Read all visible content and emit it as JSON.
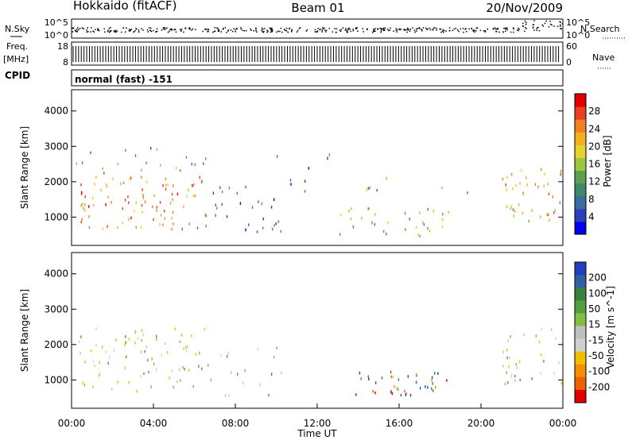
{
  "header": {
    "station": "Hokkaido (fitACF)",
    "beam": "Beam 01",
    "date": "20/Nov/2009"
  },
  "top_panels": {
    "noise_left_label": "N.Sky",
    "noise_right_label": "N.Search",
    "noise_ticks": [
      "10^5",
      "10^0"
    ],
    "freq_label": "Freq.",
    "freq_unit": "[MHz]",
    "freq_ticks": [
      "18",
      "8"
    ],
    "nave_label": "Nave",
    "nave_ticks": [
      "60",
      "0"
    ],
    "cpid_label": "CPID",
    "cpid_value": "normal (fast) -151"
  },
  "chart_data": [
    {
      "type": "heatmap",
      "panel": "power",
      "ylabel": "Slant Range [km]",
      "xlabel": "",
      "ylim": [
        200,
        4600
      ],
      "yticks": [
        1000,
        2000,
        3000,
        4000
      ],
      "xlim_hours": [
        0,
        24
      ],
      "colorbar": {
        "label": "Power [dB]",
        "range": [
          0,
          32
        ],
        "ticks": [
          4,
          8,
          12,
          16,
          20,
          24,
          28
        ],
        "colors": [
          "#0000ee",
          "#2a3fb8",
          "#3d6aa0",
          "#3d8a6a",
          "#5aa050",
          "#9ac840",
          "#e8d030",
          "#f5b020",
          "#f08020",
          "#e84020",
          "#e00000"
        ]
      },
      "regions": [
        {
          "t0": 0.2,
          "t1": 6.6,
          "r0": 700,
          "r1": 2200,
          "level": 0.72,
          "density": 0.85
        },
        {
          "t0": 0.2,
          "t1": 6.6,
          "r0": 2200,
          "r1": 3000,
          "level": 0.35,
          "density": 0.35
        },
        {
          "t0": 6.5,
          "t1": 10.5,
          "r0": 600,
          "r1": 2000,
          "level": 0.22,
          "density": 0.45
        },
        {
          "t0": 10,
          "t1": 13.5,
          "r0": 1500,
          "r1": 2800,
          "level": 0.18,
          "density": 0.15
        },
        {
          "t0": 13,
          "t1": 18.5,
          "r0": 500,
          "r1": 1300,
          "level": 0.5,
          "density": 0.65
        },
        {
          "t0": 14,
          "t1": 16,
          "r0": 1700,
          "r1": 2300,
          "level": 0.45,
          "density": 0.35
        },
        {
          "t0": 18,
          "t1": 20,
          "r0": 1700,
          "r1": 2000,
          "level": 0.5,
          "density": 0.3
        },
        {
          "t0": 21,
          "t1": 24,
          "r0": 900,
          "r1": 2400,
          "level": 0.65,
          "density": 0.8
        }
      ]
    },
    {
      "type": "heatmap",
      "panel": "velocity",
      "ylabel": "Slant Range [km]",
      "xlabel": "Time UT",
      "ylim": [
        200,
        4600
      ],
      "yticks": [
        1000,
        2000,
        3000,
        4000
      ],
      "xlim_hours": [
        0,
        24
      ],
      "xticks": [
        "00:00",
        "04:00",
        "08:00",
        "12:00",
        "16:00",
        "20:00",
        "00:00"
      ],
      "colorbar": {
        "label": "Velocity [m s^-1]",
        "tick_labels": [
          "200",
          "100",
          "50",
          "15",
          "-15",
          "-50",
          "-100",
          "-200"
        ],
        "colors": [
          "#2040c0",
          "#3060a0",
          "#3a8040",
          "#50a040",
          "#80c040",
          "#c0c0c0",
          "#d0d0d0",
          "#f0c000",
          "#f09000",
          "#f06000",
          "#e00000"
        ]
      },
      "regions": [
        {
          "t0": 0.2,
          "t1": 6.6,
          "r0": 700,
          "r1": 2500,
          "level": 0.5,
          "density": 0.6
        },
        {
          "t0": 6.5,
          "t1": 10.5,
          "r0": 600,
          "r1": 2000,
          "level": 0.45,
          "density": 0.3
        },
        {
          "t0": 13,
          "t1": 18,
          "r0": 600,
          "r1": 1300,
          "level": 0.1,
          "density": 0.7
        },
        {
          "t0": 14.5,
          "t1": 18.5,
          "r0": 600,
          "r1": 1200,
          "level": 0.75,
          "density": 0.5
        },
        {
          "t0": 21,
          "t1": 24,
          "r0": 900,
          "r1": 2500,
          "level": 0.5,
          "density": 0.6
        }
      ]
    }
  ]
}
